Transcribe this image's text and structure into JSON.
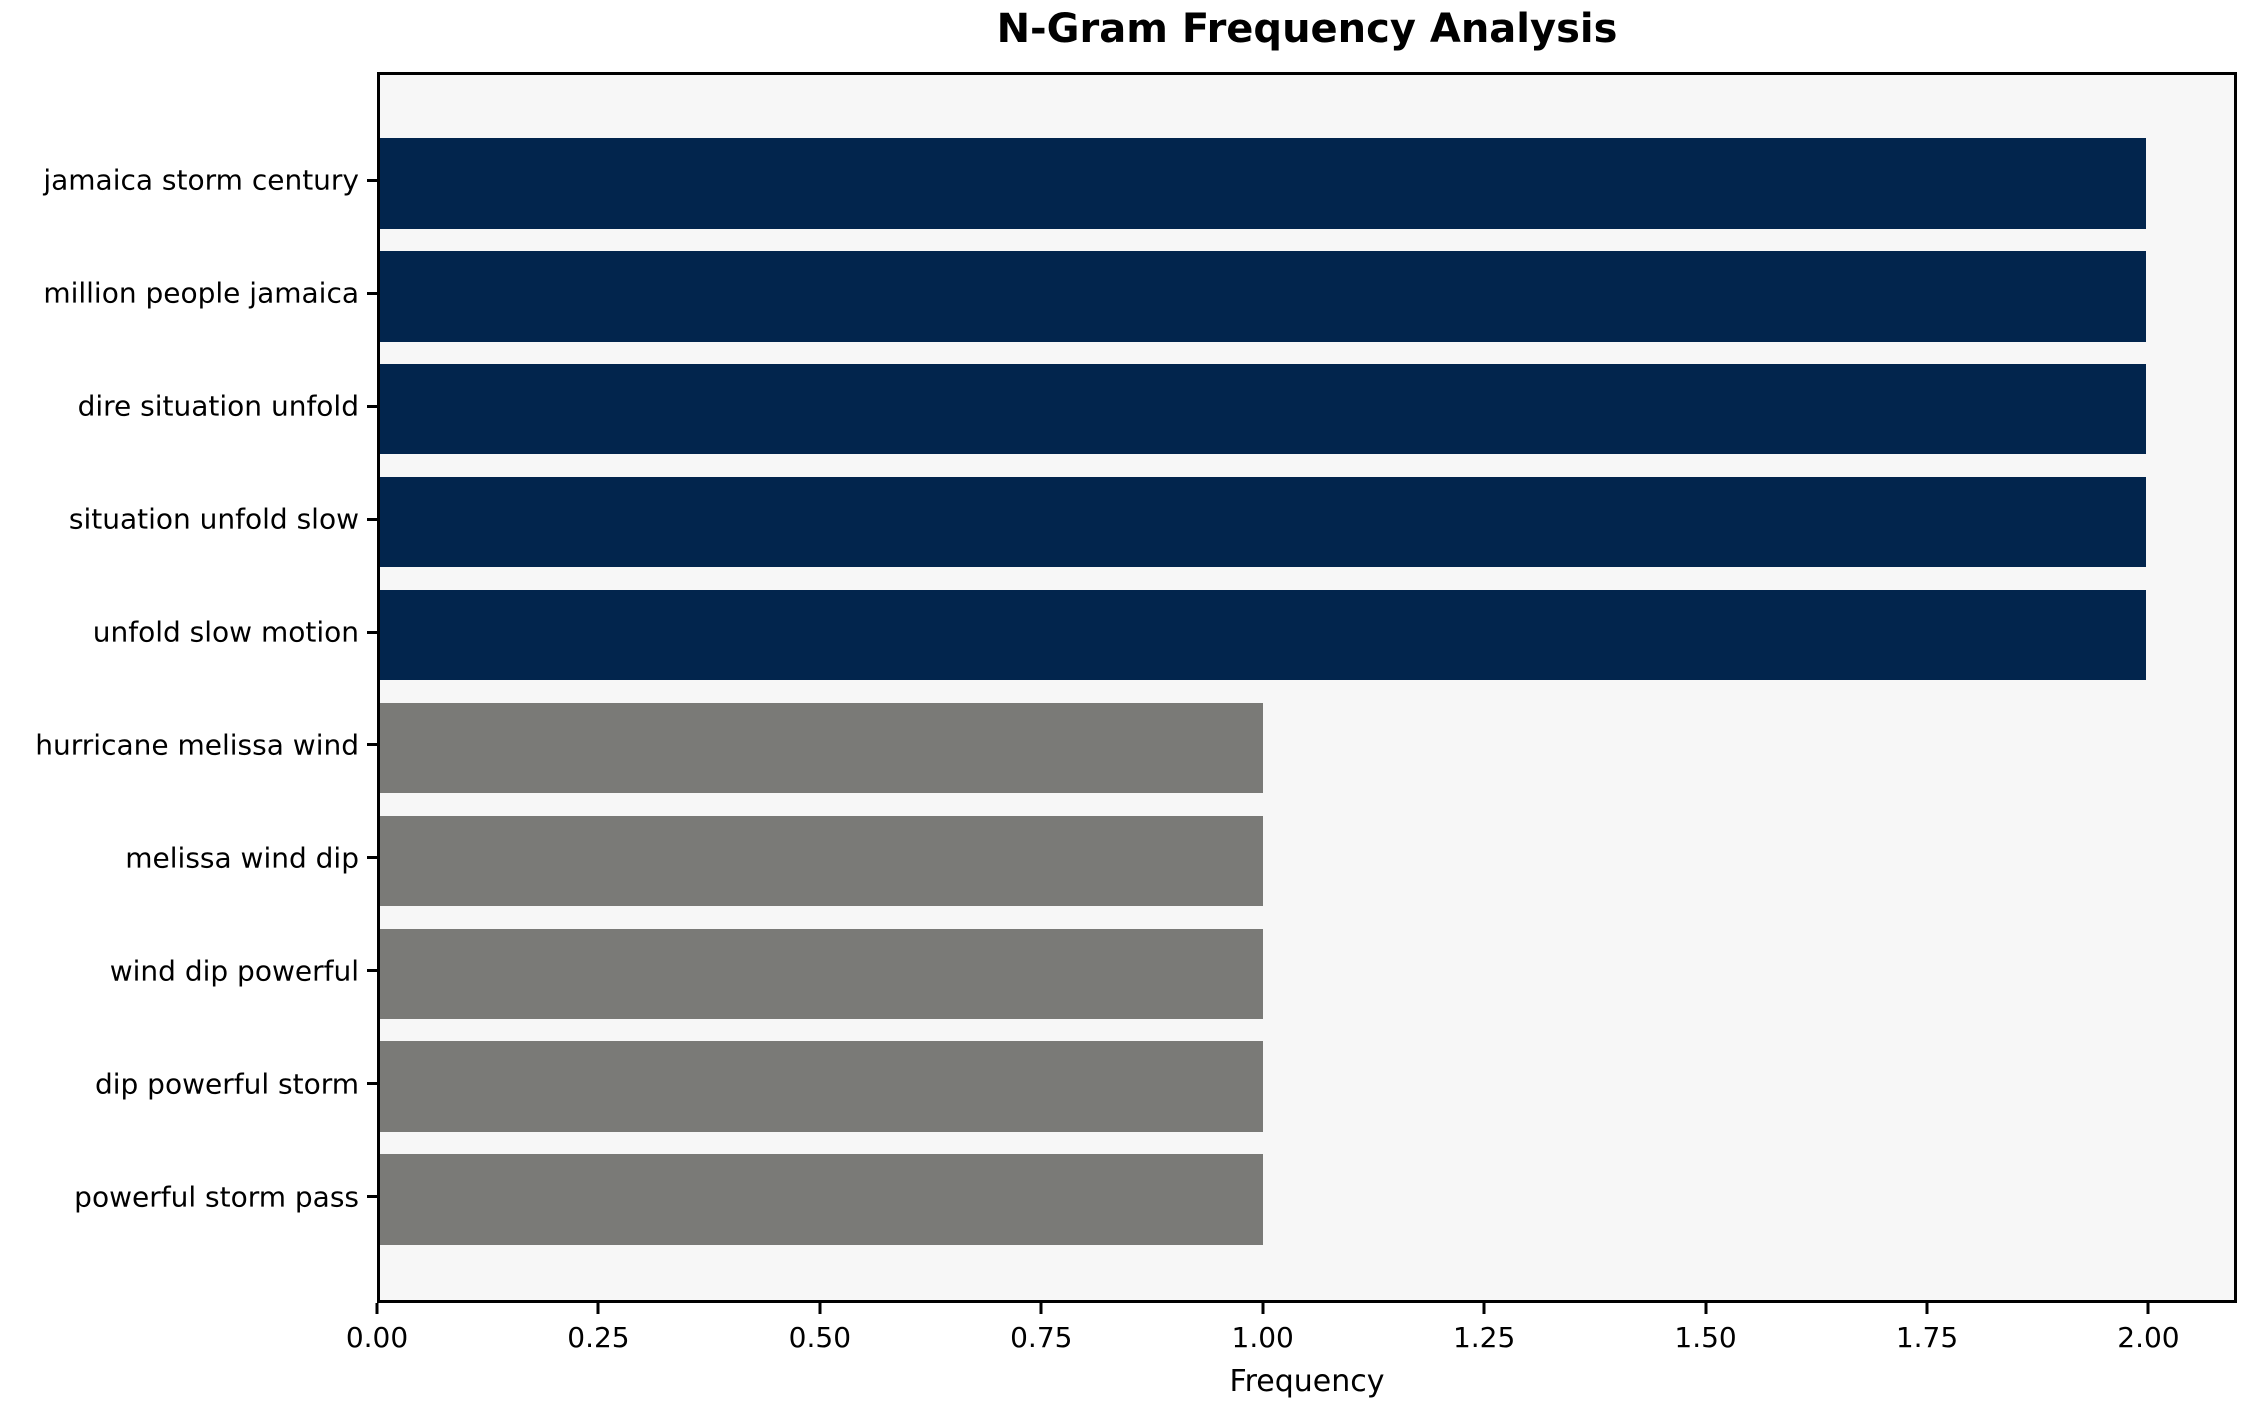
{
  "chart_data": {
    "type": "bar",
    "orientation": "horizontal",
    "title": "N-Gram Frequency Analysis",
    "xlabel": "Frequency",
    "ylabel": "",
    "categories": [
      "jamaica storm century",
      "million people jamaica",
      "dire situation unfold",
      "situation unfold slow",
      "unfold slow motion",
      "hurricane melissa wind",
      "melissa wind dip",
      "wind dip powerful",
      "dip powerful storm",
      "powerful storm pass"
    ],
    "values": [
      2,
      2,
      2,
      2,
      2,
      1,
      1,
      1,
      1,
      1
    ],
    "bar_colors": [
      "#02254d",
      "#02254d",
      "#02254d",
      "#02254d",
      "#02254d",
      "#7a7a77",
      "#7a7a77",
      "#7a7a77",
      "#7a7a77",
      "#7a7a77"
    ],
    "xlim": [
      0,
      2.1
    ],
    "x_ticks": [
      0,
      0.25,
      0.5,
      0.75,
      1.0,
      1.25,
      1.5,
      1.75,
      2.0
    ],
    "x_tick_labels": [
      "0.00",
      "0.25",
      "0.50",
      "0.75",
      "1.00",
      "1.25",
      "1.50",
      "1.75",
      "2.00"
    ],
    "grid": false,
    "legend": null,
    "plot_background": "#f7f7f7",
    "spine_color": "#000000"
  }
}
